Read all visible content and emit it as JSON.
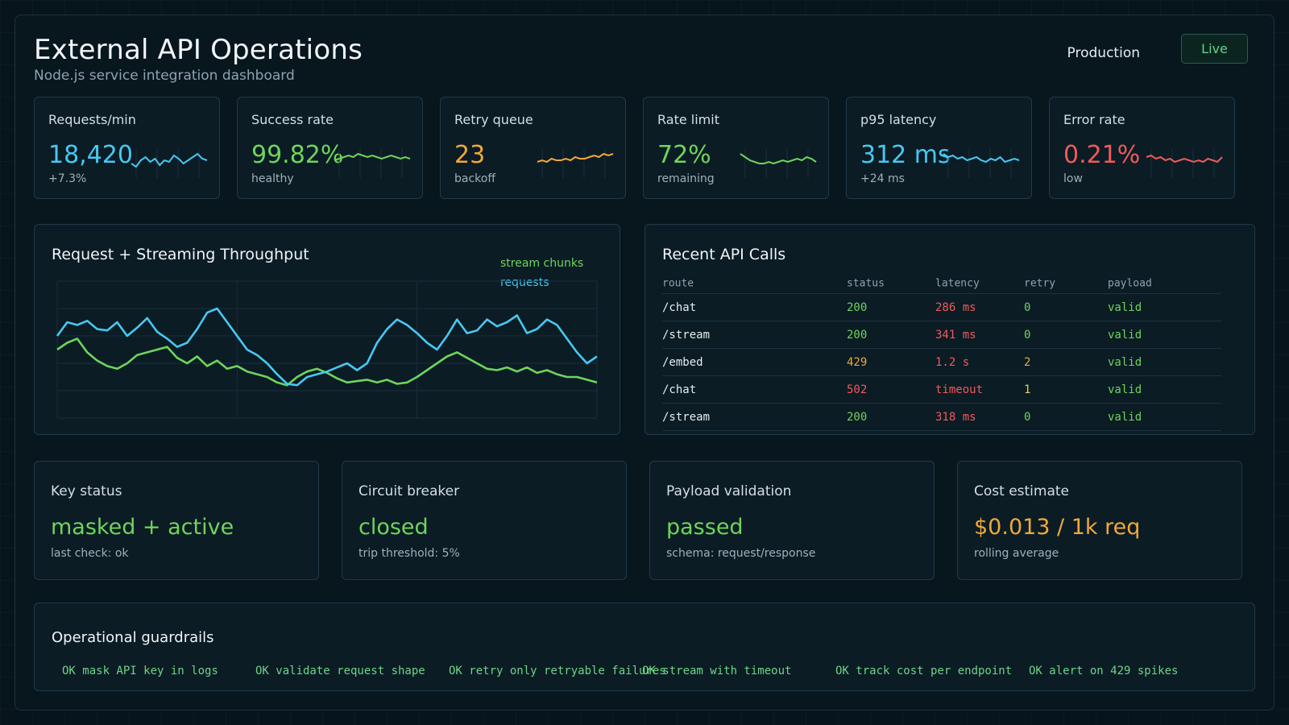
{
  "header": {
    "title": "External API Operations",
    "subtitle": "Node.js service integration dashboard",
    "environment": "Production",
    "live_label": "Live"
  },
  "colors": {
    "cyan": "#48c8f0",
    "green": "#6fd45c",
    "orange": "#f0a83a",
    "red": "#f05a5a"
  },
  "kpis": [
    {
      "label": "Requests/min",
      "value": "18,420",
      "sub": "+7.3%",
      "color": "#48c8f0",
      "spark": [
        8,
        6,
        10,
        12,
        9,
        11,
        7,
        10,
        9,
        13,
        11,
        8,
        10,
        12,
        14,
        11,
        10
      ]
    },
    {
      "label": "Success rate",
      "value": "99.82%",
      "sub": "healthy",
      "color": "#6fd45c",
      "spark": [
        10,
        11,
        12,
        13,
        12,
        14,
        13,
        12,
        13,
        12,
        11,
        12,
        13,
        12,
        11,
        12,
        11
      ]
    },
    {
      "label": "Retry queue",
      "value": "23",
      "sub": "backoff",
      "color": "#f0a83a",
      "spark": [
        9,
        10,
        9,
        11,
        10,
        10,
        11,
        10,
        12,
        11,
        11,
        12,
        13,
        12,
        14,
        13,
        14
      ]
    },
    {
      "label": "Rate limit",
      "value": "72%",
      "sub": "remaining",
      "color": "#6fd45c",
      "spark": [
        14,
        12,
        10,
        9,
        8,
        8,
        9,
        8,
        9,
        10,
        9,
        10,
        11,
        10,
        12,
        11,
        9
      ]
    },
    {
      "label": "p95 latency",
      "value": "312 ms",
      "sub": "+24 ms",
      "color": "#48c8f0",
      "spark": [
        14,
        12,
        13,
        11,
        12,
        10,
        11,
        12,
        10,
        9,
        11,
        10,
        12,
        9,
        10,
        11,
        10
      ]
    },
    {
      "label": "Error rate",
      "value": "0.21%",
      "sub": "low",
      "color": "#f05a5a",
      "spark": [
        12,
        13,
        11,
        12,
        10,
        11,
        9,
        10,
        11,
        10,
        9,
        10,
        9,
        11,
        10,
        9,
        12
      ]
    }
  ],
  "throughput": {
    "title": "Request + Streaming Throughput",
    "legend_stream": "stream chunks",
    "legend_requests": "requests"
  },
  "chart_data": {
    "type": "line",
    "title": "Request + Streaming Throughput",
    "series": [
      {
        "name": "requests",
        "values": [
          60,
          70,
          68,
          71,
          65,
          64,
          70,
          60,
          66,
          73,
          63,
          58,
          52,
          55,
          65,
          77,
          80,
          70,
          60,
          50,
          46,
          40,
          32,
          25,
          24,
          30,
          32,
          34,
          37,
          40,
          35,
          40,
          55,
          65,
          72,
          68,
          62,
          55,
          50,
          60,
          72,
          62,
          64,
          72,
          67,
          70,
          75,
          62,
          65,
          72,
          68,
          58,
          48,
          40,
          45
        ]
      },
      {
        "name": "stream chunks",
        "values": [
          50,
          55,
          58,
          48,
          42,
          38,
          36,
          40,
          46,
          48,
          50,
          52,
          44,
          40,
          45,
          38,
          42,
          36,
          38,
          34,
          32,
          30,
          26,
          24,
          30,
          34,
          36,
          33,
          29,
          26,
          27,
          28,
          26,
          28,
          25,
          26,
          30,
          35,
          40,
          45,
          48,
          44,
          40,
          36,
          35,
          37,
          34,
          37,
          33,
          35,
          32,
          30,
          30,
          28,
          26
        ]
      }
    ],
    "grid": true,
    "legend_position": "top-right"
  },
  "recent_calls": {
    "title": "Recent API Calls",
    "columns": [
      "route",
      "status",
      "latency",
      "retry",
      "payload"
    ],
    "rows": [
      {
        "route": "/chat",
        "status": "200",
        "latency": "286 ms",
        "retry": "0",
        "payload": "valid"
      },
      {
        "route": "/stream",
        "status": "200",
        "latency": "341 ms",
        "retry": "0",
        "payload": "valid"
      },
      {
        "route": "/embed",
        "status": "429",
        "latency": "1.2 s",
        "retry": "2",
        "payload": "valid"
      },
      {
        "route": "/chat",
        "status": "502",
        "latency": "timeout",
        "retry": "1",
        "payload": "valid"
      },
      {
        "route": "/stream",
        "status": "200",
        "latency": "318 ms",
        "retry": "0",
        "payload": "valid"
      }
    ]
  },
  "status_cards": [
    {
      "label": "Key status",
      "value": "masked + active",
      "sub": "last check: ok",
      "color": "#6fd45c"
    },
    {
      "label": "Circuit breaker",
      "value": "closed",
      "sub": "trip threshold: 5%",
      "color": "#6fd45c"
    },
    {
      "label": "Payload validation",
      "value": "passed",
      "sub": "schema: request/response",
      "color": "#6fd45c"
    },
    {
      "label": "Cost estimate",
      "value": "$0.013 / 1k req",
      "sub": "rolling average",
      "color": "#f0a83a"
    }
  ],
  "guardrails": {
    "title": "Operational guardrails",
    "items": [
      "OK mask API key in logs",
      "OK validate request shape",
      "OK retry only retryable failures",
      "OK stream with timeout",
      "OK track cost per endpoint",
      "OK alert on 429 spikes"
    ]
  }
}
